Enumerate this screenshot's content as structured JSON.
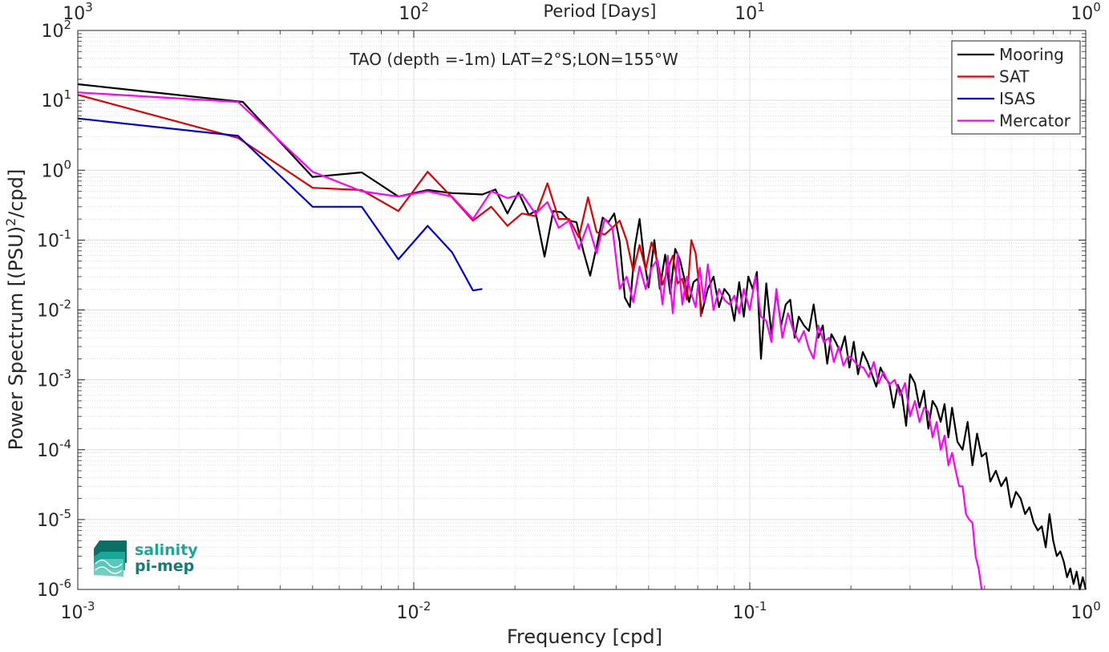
{
  "chart_data": {
    "type": "line",
    "title": "TAO (depth =-1m) LAT=2°S;LON=155°W",
    "xlabel": "Frequency [cpd]",
    "ylabel": "Power Spectrum [(PSU)^2/cpd]",
    "top_xlabel": "Period [Days]",
    "x_scale": "log",
    "y_scale": "log",
    "xlim": [
      0.001,
      1
    ],
    "ylim": [
      1e-06,
      100
    ],
    "grid": true,
    "legend_position": "top-right",
    "x_ticks": [
      {
        "value": 0.001,
        "base": "10",
        "exp": "-3"
      },
      {
        "value": 0.01,
        "base": "10",
        "exp": "-2"
      },
      {
        "value": 0.1,
        "base": "10",
        "exp": "-1"
      },
      {
        "value": 1,
        "base": "10",
        "exp": "0"
      }
    ],
    "top_ticks": [
      {
        "value": 0.001,
        "base": "10",
        "exp": "3"
      },
      {
        "value": 0.01,
        "base": "10",
        "exp": "2"
      },
      {
        "value": 0.1,
        "base": "10",
        "exp": "1"
      },
      {
        "value": 1,
        "base": "10",
        "exp": "0"
      }
    ],
    "y_ticks": [
      {
        "value": 1e-06,
        "base": "10",
        "exp": "-6"
      },
      {
        "value": 1e-05,
        "base": "10",
        "exp": "-5"
      },
      {
        "value": 0.0001,
        "base": "10",
        "exp": "-4"
      },
      {
        "value": 0.001,
        "base": "10",
        "exp": "-3"
      },
      {
        "value": 0.01,
        "base": "10",
        "exp": "-2"
      },
      {
        "value": 0.1,
        "base": "10",
        "exp": "-1"
      },
      {
        "value": 1,
        "base": "10",
        "exp": "0"
      },
      {
        "value": 10,
        "base": "10",
        "exp": "1"
      },
      {
        "value": 100,
        "base": "10",
        "exp": "2"
      }
    ],
    "series": [
      {
        "name": "Mooring",
        "color": "#000000",
        "x": [
          0.001,
          0.0031,
          0.005,
          0.007,
          0.009,
          0.011,
          0.013,
          0.0145,
          0.016,
          0.0175,
          0.019,
          0.0205,
          0.022,
          0.023,
          0.0245,
          0.026,
          0.0275,
          0.029,
          0.0305,
          0.032,
          0.0335,
          0.035,
          0.0365,
          0.038,
          0.0395,
          0.041,
          0.0425,
          0.044,
          0.0455,
          0.047,
          0.0485,
          0.05,
          0.052,
          0.054,
          0.056,
          0.058,
          0.06,
          0.062,
          0.064,
          0.066,
          0.068,
          0.07,
          0.072,
          0.075,
          0.078,
          0.081,
          0.084,
          0.087,
          0.09,
          0.093,
          0.096,
          0.099,
          0.102,
          0.105,
          0.108,
          0.112,
          0.116,
          0.12,
          0.124,
          0.128,
          0.132,
          0.136,
          0.14,
          0.145,
          0.15,
          0.155,
          0.16,
          0.165,
          0.17,
          0.175,
          0.18,
          0.186,
          0.192,
          0.198,
          0.204,
          0.21,
          0.217,
          0.224,
          0.231,
          0.238,
          0.245,
          0.252,
          0.26,
          0.268,
          0.276,
          0.284,
          0.292,
          0.3,
          0.31,
          0.32,
          0.33,
          0.34,
          0.35,
          0.36,
          0.37,
          0.38,
          0.39,
          0.4,
          0.415,
          0.43,
          0.445,
          0.46,
          0.475,
          0.49,
          0.505,
          0.52,
          0.54,
          0.56,
          0.58,
          0.6,
          0.62,
          0.64,
          0.66,
          0.68,
          0.7,
          0.72,
          0.74,
          0.76,
          0.78,
          0.8,
          0.82,
          0.84,
          0.86,
          0.88,
          0.9,
          0.92,
          0.94,
          0.96,
          0.98,
          1.0
        ],
        "values": [
          17,
          9.5,
          0.8,
          0.93,
          0.42,
          0.52,
          0.47,
          0.46,
          0.45,
          0.53,
          0.24,
          0.48,
          0.23,
          0.26,
          0.058,
          0.26,
          0.25,
          0.19,
          0.18,
          0.068,
          0.031,
          0.08,
          0.21,
          0.18,
          0.24,
          0.095,
          0.015,
          0.011,
          0.08,
          0.2,
          0.052,
          0.021,
          0.1,
          0.02,
          0.062,
          0.017,
          0.075,
          0.052,
          0.027,
          0.013,
          0.025,
          0.028,
          0.009,
          0.02,
          0.03,
          0.011,
          0.02,
          0.016,
          0.007,
          0.025,
          0.008,
          0.03,
          0.02,
          0.035,
          0.002,
          0.024,
          0.0045,
          0.018,
          0.006,
          0.012,
          0.014,
          0.004,
          0.008,
          0.006,
          0.005,
          0.012,
          0.004,
          0.006,
          0.0017,
          0.0045,
          0.0035,
          0.0025,
          0.0042,
          0.0015,
          0.0035,
          0.0012,
          0.0025,
          0.0018,
          0.0012,
          0.0008,
          0.0015,
          0.0011,
          0.0009,
          0.0004,
          0.00085,
          0.0006,
          0.00022,
          0.0012,
          0.0009,
          0.0004,
          0.0007,
          0.0002,
          0.0005,
          0.0004,
          0.00025,
          0.00045,
          0.00015,
          0.0004,
          0.00013,
          0.0001,
          0.00025,
          6e-05,
          0.00017,
          8e-05,
          9e-05,
          3.5e-05,
          5e-05,
          3e-05,
          4e-05,
          1.5e-05,
          2.5e-05,
          2e-05,
          1.2e-05,
          1.5e-05,
          9e-06,
          7e-06,
          8e-06,
          4e-06,
          1.2e-05,
          5e-06,
          3e-06,
          3.5e-06,
          2.5e-06,
          1.5e-06,
          2e-06,
          1.2e-06,
          1.8e-06,
          1e-06,
          1.5e-06,
          1e-06
        ]
      },
      {
        "name": "SAT",
        "color": "#e00000",
        "x": [
          0.001,
          0.003,
          0.005,
          0.007,
          0.009,
          0.011,
          0.013,
          0.015,
          0.017,
          0.019,
          0.021,
          0.023,
          0.025,
          0.027,
          0.029,
          0.031,
          0.033,
          0.035,
          0.037,
          0.039,
          0.041,
          0.043,
          0.045,
          0.047,
          0.049,
          0.051,
          0.053,
          0.055,
          0.057,
          0.059,
          0.061,
          0.063,
          0.065,
          0.067,
          0.069,
          0.071,
          0.0715
        ],
        "values": [
          12,
          2.9,
          0.56,
          0.52,
          0.26,
          0.95,
          0.41,
          0.19,
          0.3,
          0.16,
          0.24,
          0.22,
          0.65,
          0.2,
          0.2,
          0.11,
          0.41,
          0.13,
          0.12,
          0.15,
          0.19,
          0.1,
          0.036,
          0.085,
          0.038,
          0.093,
          0.052,
          0.023,
          0.038,
          0.06,
          0.024,
          0.028,
          0.014,
          0.1,
          0.065,
          0.018,
          0.008
        ]
      },
      {
        "name": "ISAS",
        "color": "#0000e0",
        "x": [
          0.001,
          0.003,
          0.005,
          0.007,
          0.009,
          0.011,
          0.013,
          0.015,
          0.016
        ],
        "values": [
          5.5,
          3.1,
          0.3,
          0.3,
          0.053,
          0.16,
          0.067,
          0.019,
          0.02
        ]
      },
      {
        "name": "Mercator",
        "color": "#ff00ff",
        "x": [
          0.001,
          0.003,
          0.005,
          0.007,
          0.009,
          0.011,
          0.013,
          0.015,
          0.017,
          0.019,
          0.021,
          0.023,
          0.025,
          0.027,
          0.029,
          0.031,
          0.033,
          0.035,
          0.037,
          0.039,
          0.041,
          0.043,
          0.045,
          0.047,
          0.049,
          0.051,
          0.053,
          0.055,
          0.057,
          0.059,
          0.061,
          0.063,
          0.065,
          0.067,
          0.069,
          0.071,
          0.073,
          0.075,
          0.078,
          0.081,
          0.084,
          0.087,
          0.09,
          0.093,
          0.096,
          0.1,
          0.104,
          0.108,
          0.112,
          0.116,
          0.12,
          0.125,
          0.13,
          0.135,
          0.14,
          0.145,
          0.15,
          0.155,
          0.16,
          0.166,
          0.172,
          0.178,
          0.184,
          0.19,
          0.196,
          0.202,
          0.21,
          0.218,
          0.226,
          0.234,
          0.242,
          0.25,
          0.26,
          0.27,
          0.28,
          0.29,
          0.3,
          0.31,
          0.32,
          0.33,
          0.34,
          0.35,
          0.36,
          0.37,
          0.38,
          0.39,
          0.4,
          0.41,
          0.42,
          0.43,
          0.44,
          0.45,
          0.46,
          0.47,
          0.48,
          0.49
        ],
        "values": [
          13,
          9.5,
          0.95,
          0.5,
          0.42,
          0.5,
          0.42,
          0.2,
          0.5,
          0.4,
          0.45,
          0.24,
          0.35,
          0.15,
          0.19,
          0.075,
          0.17,
          0.065,
          0.2,
          0.15,
          0.02,
          0.03,
          0.013,
          0.042,
          0.02,
          0.04,
          0.052,
          0.012,
          0.06,
          0.009,
          0.065,
          0.012,
          0.03,
          0.017,
          0.011,
          0.04,
          0.013,
          0.045,
          0.01,
          0.02,
          0.014,
          0.012,
          0.016,
          0.009,
          0.02,
          0.01,
          0.03,
          0.008,
          0.007,
          0.0035,
          0.02,
          0.004,
          0.009,
          0.005,
          0.0035,
          0.005,
          0.0028,
          0.002,
          0.006,
          0.0035,
          0.004,
          0.0018,
          0.003,
          0.0016,
          0.0022,
          0.002,
          0.0016,
          0.0015,
          0.0011,
          0.0018,
          0.0009,
          0.0013,
          0.00085,
          0.001,
          0.0006,
          0.0009,
          0.0003,
          0.0005,
          0.00025,
          0.0004,
          0.00035,
          0.00015,
          0.00025,
          0.0001,
          0.00016,
          6e-05,
          9e-05,
          5e-05,
          3e-05,
          3e-05,
          1.2e-05,
          1e-05,
          9e-06,
          3e-06,
          2e-06,
          1e-06
        ]
      }
    ]
  },
  "logo": {
    "line1": "salinity",
    "line2": "pi-mep",
    "color": "#1aa896"
  }
}
